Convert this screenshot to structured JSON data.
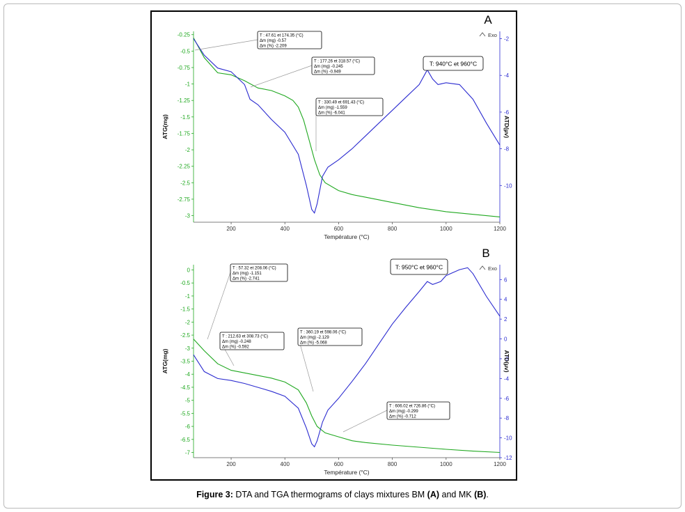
{
  "caption": {
    "prefix": "Figure 3:",
    "text1": " DTA and TGA thermograms of clays mixtures BM ",
    "a": "(A)",
    "text2": " and MK ",
    "b": "(B)",
    "text3": "."
  },
  "colors": {
    "tga": "#1fa81f",
    "dta": "#2b2bd0",
    "left_axis": "#1fa81f",
    "right_axis": "#2b2bd0"
  },
  "chart_data": [
    {
      "type": "line",
      "panel_label": "A",
      "xlabel": "Température (°C)",
      "ylabel_left": "ATG(mg)",
      "ylabel_right": "ATD(µv)",
      "exo_label": "Exo",
      "xlim": [
        60,
        1200
      ],
      "ylim_left": [
        -3.1,
        -0.2
      ],
      "ylim_right": [
        -12,
        -1.6
      ],
      "x_ticks": [
        "200",
        "400",
        "600",
        "800",
        "1000",
        "1200"
      ],
      "x_tick_values": [
        200,
        400,
        600,
        800,
        1000,
        1200
      ],
      "y_left_ticks": [
        "-0.25",
        "-0.5",
        "-0.75",
        "-1",
        "-1.25",
        "-1.5",
        "-1.75",
        "-2",
        "-2.25",
        "-2.5",
        "-2.75",
        "-3"
      ],
      "y_left_values": [
        -0.25,
        -0.5,
        -0.75,
        -1,
        -1.25,
        -1.5,
        -1.75,
        -2,
        -2.25,
        -2.5,
        -2.75,
        -3
      ],
      "y_right_ticks": [
        "-2",
        "-4",
        "-6",
        "-8",
        "-10"
      ],
      "y_right_values": [
        -2,
        -4,
        -6,
        -8,
        -10
      ],
      "series": [
        {
          "axis": "left",
          "color": "#1fa81f",
          "x": [
            60,
            100,
            150,
            200,
            250,
            300,
            350,
            400,
            430,
            450,
            470,
            490,
            510,
            530,
            550,
            600,
            650,
            700,
            800,
            900,
            1000,
            1100,
            1200
          ],
          "y": [
            -0.3,
            -0.6,
            -0.83,
            -0.86,
            -0.95,
            -1.06,
            -1.1,
            -1.18,
            -1.25,
            -1.35,
            -1.55,
            -1.85,
            -2.15,
            -2.38,
            -2.5,
            -2.62,
            -2.68,
            -2.72,
            -2.8,
            -2.88,
            -2.94,
            -2.98,
            -3.02
          ]
        },
        {
          "axis": "right",
          "color": "#2b2bd0",
          "x": [
            60,
            100,
            150,
            200,
            250,
            270,
            300,
            350,
            400,
            450,
            480,
            500,
            510,
            520,
            540,
            560,
            600,
            650,
            700,
            750,
            800,
            850,
            900,
            930,
            950,
            970,
            1000,
            1050,
            1100,
            1150,
            1200
          ],
          "y": [
            -2.0,
            -2.9,
            -3.6,
            -3.8,
            -4.5,
            -5.3,
            -5.6,
            -6.4,
            -7.1,
            -8.3,
            -10.0,
            -11.3,
            -11.5,
            -11.0,
            -9.5,
            -9.0,
            -8.6,
            -8.0,
            -7.3,
            -6.6,
            -5.9,
            -5.2,
            -4.5,
            -3.7,
            -4.2,
            -4.5,
            -4.4,
            -4.5,
            -5.3,
            -6.6,
            -7.8
          ]
        }
      ],
      "annotations": [
        {
          "lines": [
            "T : 47.61 et 174.35 (°C)",
            "Δm (mg) -0.57",
            "Δm (%) -2.209"
          ]
        },
        {
          "lines": [
            "T : 177.26 et 318.57 (°C)",
            "Δm (mg) -0.245",
            "Δm (%) -0.949"
          ]
        },
        {
          "lines": [
            "T : 330.49 et 691.43 (°C)",
            "Δm (mg) -1.559",
            "Δm (%) -6.041"
          ]
        }
      ],
      "temperature_label": "T: 940°C et 960°C"
    },
    {
      "type": "line",
      "panel_label": "B",
      "xlabel": "Température (°C)",
      "ylabel_left": "ATG(mg)",
      "ylabel_right": "ATD(µv)",
      "exo_label": "Exo",
      "xlim": [
        60,
        1200
      ],
      "ylim_left": [
        -7.2,
        0.2
      ],
      "ylim_right": [
        -12,
        7.5
      ],
      "x_ticks": [
        "200",
        "400",
        "600",
        "800",
        "1000",
        "1200"
      ],
      "x_tick_values": [
        200,
        400,
        600,
        800,
        1000,
        1200
      ],
      "y_left_ticks": [
        "0",
        "-0.5",
        "-1",
        "-1.5",
        "-2",
        "-2.5",
        "-3",
        "-3.5",
        "-4",
        "-4.5",
        "-5",
        "-5.5",
        "-6",
        "-6.5",
        "-7"
      ],
      "y_left_values": [
        0,
        -0.5,
        -1,
        -1.5,
        -2,
        -2.5,
        -3,
        -3.5,
        -4,
        -4.5,
        -5,
        -5.5,
        -6,
        -6.5,
        -7
      ],
      "y_right_ticks": [
        "6",
        "4",
        "2",
        "0",
        "-2",
        "-4",
        "-6",
        "-8",
        "-10",
        "-12"
      ],
      "y_right_values": [
        6,
        4,
        2,
        0,
        -2,
        -4,
        -6,
        -8,
        -10,
        -12
      ],
      "series": [
        {
          "axis": "left",
          "color": "#1fa81f",
          "x": [
            60,
            100,
            150,
            200,
            250,
            300,
            350,
            400,
            450,
            480,
            500,
            520,
            550,
            600,
            650,
            700,
            800,
            900,
            1000,
            1100,
            1200
          ],
          "y": [
            -2.65,
            -3.1,
            -3.6,
            -3.85,
            -3.95,
            -4.05,
            -4.15,
            -4.3,
            -4.6,
            -5.1,
            -5.6,
            -6.0,
            -6.25,
            -6.4,
            -6.55,
            -6.62,
            -6.72,
            -6.8,
            -6.88,
            -6.95,
            -7.0
          ]
        },
        {
          "axis": "right",
          "color": "#2b2bd0",
          "x": [
            60,
            100,
            150,
            200,
            250,
            300,
            350,
            400,
            450,
            480,
            500,
            510,
            520,
            540,
            560,
            600,
            650,
            700,
            750,
            800,
            850,
            900,
            930,
            950,
            980,
            1000,
            1050,
            1080,
            1100,
            1150,
            1200
          ],
          "y": [
            -1.6,
            -3.3,
            -4.0,
            -4.2,
            -4.5,
            -4.9,
            -5.3,
            -5.8,
            -7.0,
            -9.0,
            -10.6,
            -10.9,
            -10.3,
            -8.4,
            -7.2,
            -6.0,
            -4.3,
            -2.5,
            -0.5,
            1.5,
            3.2,
            4.8,
            5.8,
            5.5,
            5.8,
            6.4,
            7.0,
            7.2,
            6.6,
            4.3,
            2.3
          ]
        }
      ],
      "annotations": [
        {
          "lines": [
            "T : 57.32 et 208.06 (°C)",
            "Δm (mg) -1.151",
            "Δm (%) -2.741"
          ]
        },
        {
          "lines": [
            "T : 212.63 et 308.73 (°C)",
            "Δm (mg) -0.248",
            "Δm (%) -0.592"
          ]
        },
        {
          "lines": [
            "T : 360.19 et 598.06 (°C)",
            "Δm (mg) -2.129",
            "Δm (%) -5.068"
          ]
        },
        {
          "lines": [
            "T : 606.02 et 726.86 (°C)",
            "Δm (mg) -0.299",
            "Δm (%) -0.712"
          ]
        }
      ],
      "temperature_label": "T: 950°C et 960°C"
    }
  ]
}
